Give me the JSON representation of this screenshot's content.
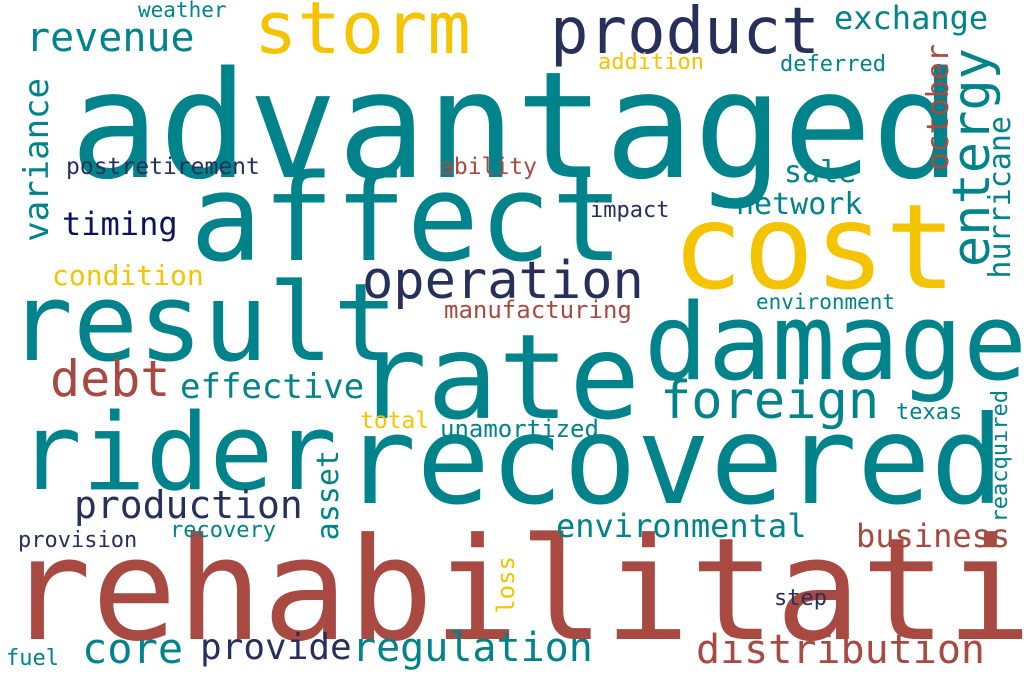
{
  "palette": {
    "teal": "#00838a",
    "gold": "#f5c400",
    "navy": "#27305a",
    "rust": "#a84a42",
    "deep_navy": "#0b1360"
  },
  "words": [
    {
      "text": "advantaged",
      "color": "teal"
    },
    {
      "text": "rehabilitation",
      "color": "rust"
    },
    {
      "text": "recovered",
      "color": "teal"
    },
    {
      "text": "affect",
      "color": "teal"
    },
    {
      "text": "cost",
      "color": "gold"
    },
    {
      "text": "rate",
      "color": "teal"
    },
    {
      "text": "result",
      "color": "teal"
    },
    {
      "text": "damage",
      "color": "teal"
    },
    {
      "text": "rider",
      "color": "teal"
    },
    {
      "text": "storm",
      "color": "gold"
    },
    {
      "text": "product",
      "color": "navy"
    },
    {
      "text": "operation",
      "color": "navy"
    },
    {
      "text": "foreign",
      "color": "teal"
    },
    {
      "text": "entergy",
      "color": "teal"
    },
    {
      "text": "distribution",
      "color": "rust"
    },
    {
      "text": "regulation",
      "color": "teal"
    },
    {
      "text": "debt",
      "color": "rust"
    },
    {
      "text": "revenue",
      "color": "teal"
    },
    {
      "text": "production",
      "color": "navy"
    },
    {
      "text": "core",
      "color": "teal"
    },
    {
      "text": "provide",
      "color": "navy"
    },
    {
      "text": "effective",
      "color": "teal"
    },
    {
      "text": "variance",
      "color": "teal"
    },
    {
      "text": "exchange",
      "color": "teal"
    },
    {
      "text": "environmental",
      "color": "teal"
    },
    {
      "text": "business",
      "color": "rust"
    },
    {
      "text": "october",
      "color": "rust"
    },
    {
      "text": "hurricane",
      "color": "teal"
    },
    {
      "text": "timing",
      "color": "deep_navy"
    },
    {
      "text": "condition",
      "color": "gold"
    },
    {
      "text": "network",
      "color": "teal"
    },
    {
      "text": "sale",
      "color": "teal"
    },
    {
      "text": "asset",
      "color": "teal"
    },
    {
      "text": "manufacturing",
      "color": "rust"
    },
    {
      "text": "unamortized",
      "color": "teal"
    },
    {
      "text": "postretirement",
      "color": "navy"
    },
    {
      "text": "ability",
      "color": "rust"
    },
    {
      "text": "impact",
      "color": "navy"
    },
    {
      "text": "addition",
      "color": "gold"
    },
    {
      "text": "deferred",
      "color": "teal"
    },
    {
      "text": "weather",
      "color": "teal"
    },
    {
      "text": "environment",
      "color": "teal"
    },
    {
      "text": "total",
      "color": "gold"
    },
    {
      "text": "texas",
      "color": "teal"
    },
    {
      "text": "reacquired",
      "color": "teal"
    },
    {
      "text": "provision",
      "color": "navy"
    },
    {
      "text": "recovery",
      "color": "teal"
    },
    {
      "text": "loss",
      "color": "gold"
    },
    {
      "text": "step",
      "color": "navy"
    },
    {
      "text": "fuel",
      "color": "teal"
    }
  ]
}
